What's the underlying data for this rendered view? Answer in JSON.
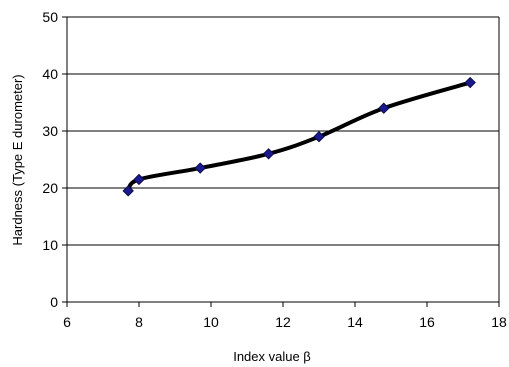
{
  "chart_data": {
    "type": "scatter",
    "title": "",
    "xlabel": "Index value β",
    "ylabel": "Hardness (Type E durometer)",
    "xlim": [
      6,
      18
    ],
    "ylim": [
      0,
      50
    ],
    "x_ticks": [
      6,
      8,
      10,
      12,
      14,
      16,
      18
    ],
    "y_ticks": [
      0,
      10,
      20,
      30,
      40,
      50
    ],
    "grid": "horizontal major gridlines",
    "legend": "none",
    "series": [
      {
        "x": [
          7.7,
          8.0,
          9.7,
          11.6,
          13.0,
          14.8,
          17.2
        ],
        "y": [
          19.5,
          21.5,
          23.5,
          26.0,
          29.0,
          34.0,
          38.5
        ]
      }
    ],
    "colors": {
      "marker_fill": "#1a1a8c",
      "marker_stroke": "#0a0a4a",
      "curve": "#000000",
      "gridline": "#000000",
      "axis": "#000000"
    },
    "marker_shape": "diamond",
    "curve_style": "smoothed thick line"
  }
}
